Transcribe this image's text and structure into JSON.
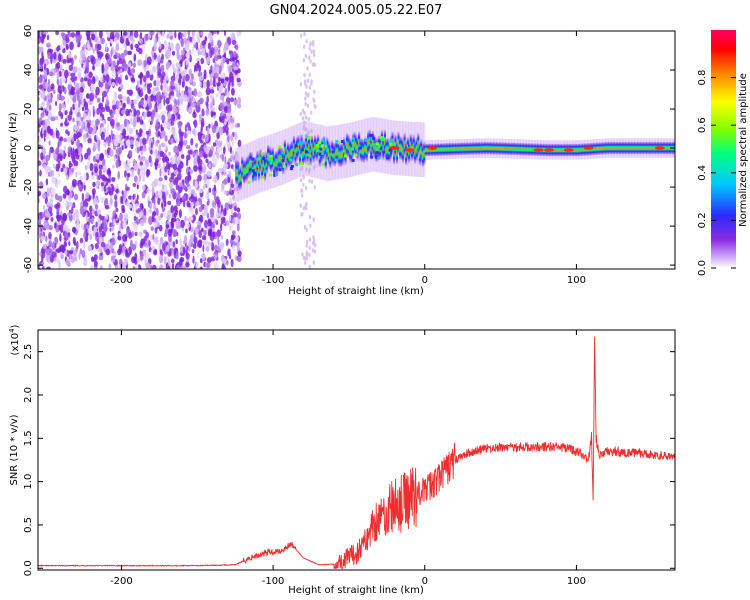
{
  "chart_data": [
    {
      "type": "heatmap",
      "title": "GN04.2024.005.05.22.E07",
      "xlabel": "Height of straight line (km)",
      "ylabel": "Frequency (Hz)",
      "xlim": [
        -255,
        165
      ],
      "ylim": [
        -62,
        60
      ],
      "xticks": [
        -200,
        -100,
        0,
        100
      ],
      "yticks": [
        -60,
        -40,
        -20,
        0,
        20,
        40,
        60
      ],
      "colorbar": {
        "label": "Normalized spectral amplitude",
        "range": [
          0,
          1
        ],
        "ticks": [
          0.0,
          0.2,
          0.4,
          0.6,
          0.8
        ],
        "colors": [
          "#ffffff",
          "#c9a0f5",
          "#8a2be2",
          "#2b2bff",
          "#00c8ff",
          "#00ff80",
          "#80ff00",
          "#ffff00",
          "#ff8000",
          "#ff0000",
          "#ff0066"
        ]
      },
      "ridge": [
        {
          "x": -125,
          "f": -14
        },
        {
          "x": -110,
          "f": -9
        },
        {
          "x": -95,
          "f": -5
        },
        {
          "x": -80,
          "f": 0
        },
        {
          "x": -65,
          "f": -3
        },
        {
          "x": -50,
          "f": -1
        },
        {
          "x": -35,
          "f": 2
        },
        {
          "x": -20,
          "f": 0
        },
        {
          "x": 0,
          "f": -1
        },
        {
          "x": 40,
          "f": 0
        },
        {
          "x": 80,
          "f": -1
        },
        {
          "x": 100,
          "f": -1
        },
        {
          "x": 120,
          "f": 0
        },
        {
          "x": 165,
          "f": 0
        }
      ],
      "noise_region_x": [
        -255,
        -122
      ],
      "grid": false
    },
    {
      "type": "line",
      "xlabel": "Height of straight line (km)",
      "ylabel": "SNR (10 * v/v)",
      "yscale_label": "(x10",
      "yscale_exp": "4",
      "xlim": [
        -255,
        165
      ],
      "ylim": [
        -0.02,
        2.75
      ],
      "xticks": [
        -200,
        -100,
        0,
        100
      ],
      "yticks": [
        "0.0",
        "0.5",
        "1.0",
        "1.5",
        "2.0",
        "2.5"
      ],
      "ytick_values": [
        0,
        0.5,
        1.0,
        1.5,
        2.0,
        2.5
      ],
      "color": "#ee2e2e",
      "series": [
        {
          "x": [
            -255,
            -200,
            -150,
            -125,
            -115,
            -105,
            -95,
            -88,
            -80,
            -70,
            -55,
            -45,
            -38,
            -33,
            -28,
            -22,
            -15,
            -8,
            0,
            10,
            20,
            30,
            40,
            55,
            70,
            85,
            95,
            100,
            105,
            108,
            110,
            111,
            112,
            113,
            115,
            120,
            140,
            165
          ],
          "y": [
            0.03,
            0.03,
            0.03,
            0.04,
            0.12,
            0.18,
            0.2,
            0.28,
            0.12,
            0.04,
            0.05,
            0.18,
            0.35,
            0.55,
            0.6,
            0.7,
            0.75,
            0.85,
            0.9,
            1.05,
            1.25,
            1.34,
            1.38,
            1.4,
            1.4,
            1.4,
            1.38,
            1.35,
            1.3,
            1.25,
            1.5,
            0.75,
            2.7,
            1.5,
            1.3,
            1.35,
            1.33,
            1.28
          ]
        }
      ],
      "grid": false
    }
  ]
}
